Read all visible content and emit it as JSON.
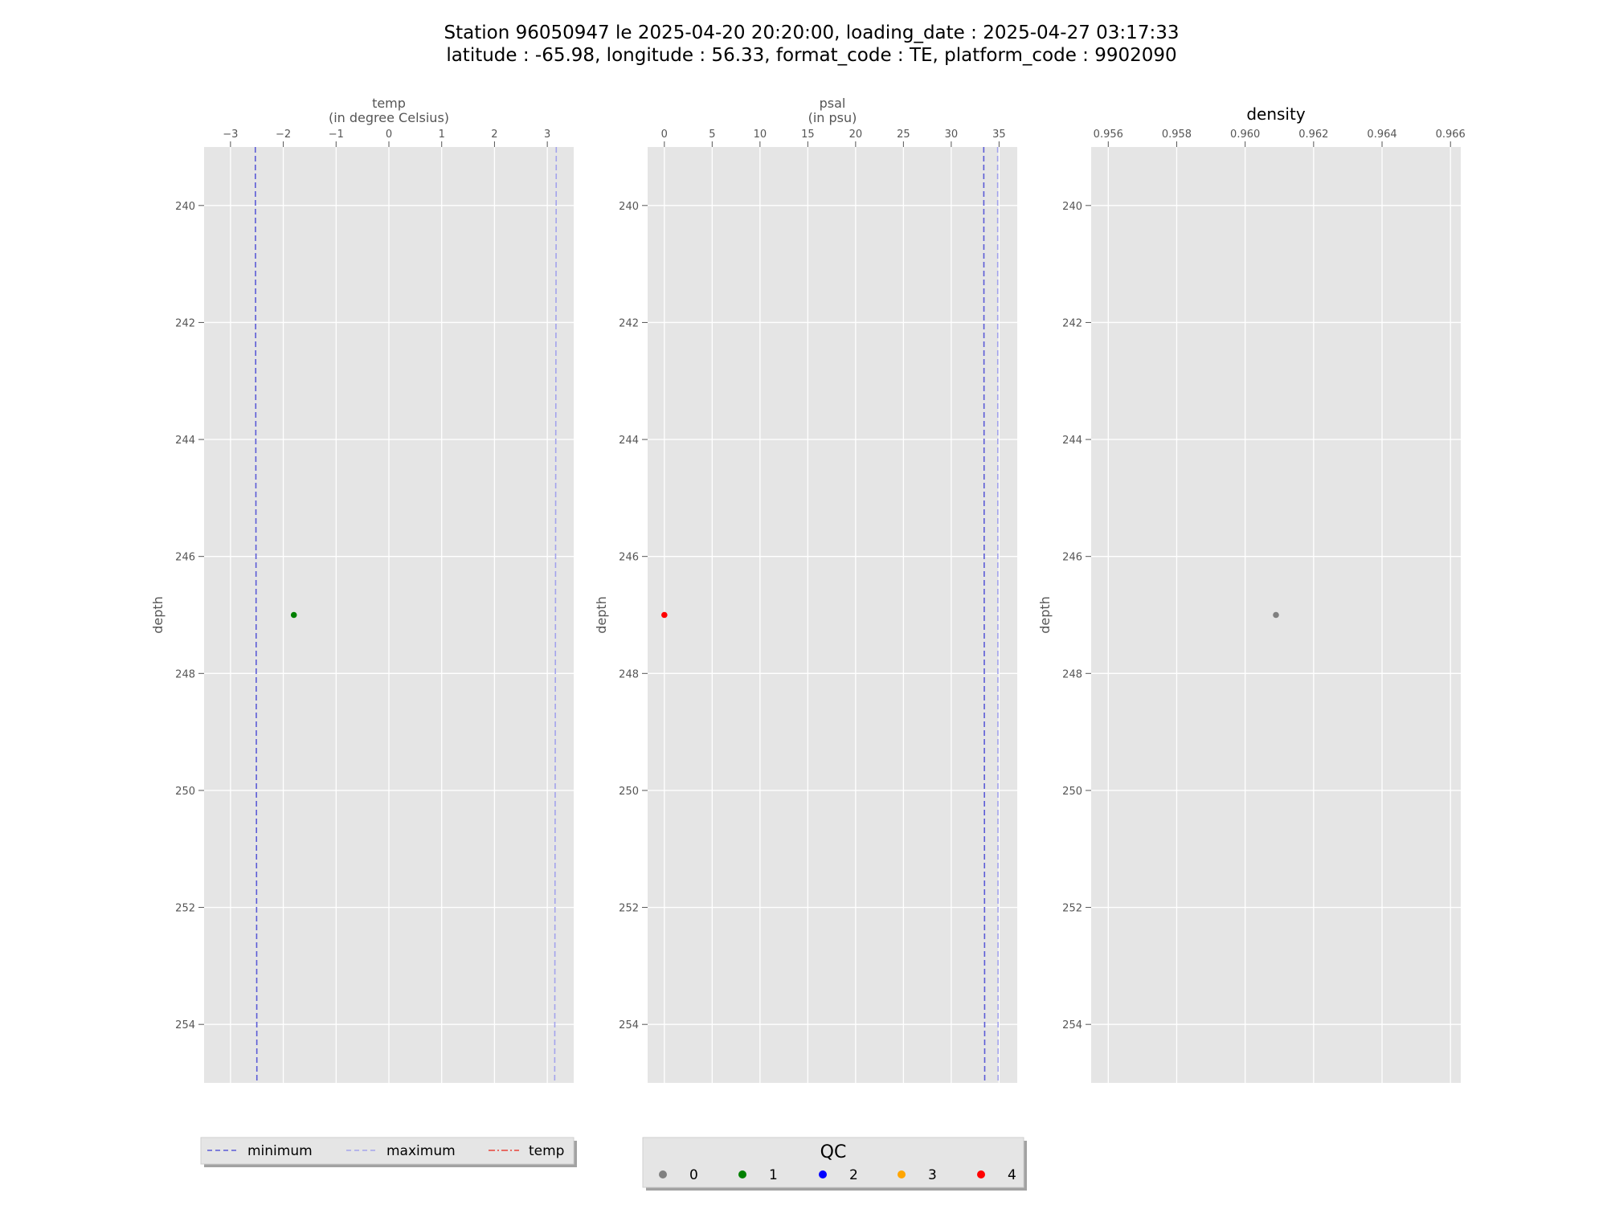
{
  "figure": {
    "title_line1": "Station 96050947 le 2025-04-20 20:20:00, loading_date : 2025-04-27 03:17:33",
    "title_line2": "latitude : -65.98, longitude : 56.33, format_code : TE, platform_code : 9902090"
  },
  "colors": {
    "panel_bg": "#e5e5e5",
    "grid": "#ffffff",
    "minimum": "#5b5bd6",
    "maximum": "#a3a3ec",
    "temp_line": "#e8433a",
    "qc0": "#808080",
    "qc1": "#008000",
    "qc2": "#0000ff",
    "qc3": "#ffa500",
    "qc4": "#ff0000"
  },
  "chart_data": [
    {
      "type": "scatter",
      "title_line1": "temp",
      "title_line2": "(in degree Celsius)",
      "ylabel": "depth",
      "xlim": [
        -3.5,
        3.5
      ],
      "ylim": [
        255,
        239
      ],
      "x_ticks": [
        -3,
        -2,
        -1,
        0,
        1,
        2,
        3
      ],
      "x_tick_labels": [
        "−3",
        "−2",
        "−1",
        "0",
        "1",
        "2",
        "3"
      ],
      "y_ticks": [
        240,
        242,
        244,
        246,
        248,
        250,
        252,
        254
      ],
      "y_tick_labels": [
        "240",
        "242",
        "244",
        "246",
        "248",
        "250",
        "252",
        "254"
      ],
      "grid": true,
      "points": [
        {
          "x": -1.8,
          "y": 247,
          "qc": "1"
        }
      ],
      "lines": [
        {
          "name": "minimum",
          "x": [
            -2.53,
            -2.5
          ],
          "y": [
            239,
            255
          ]
        },
        {
          "name": "maximum",
          "x": [
            3.17,
            3.14
          ],
          "y": [
            239,
            255
          ]
        }
      ]
    },
    {
      "type": "scatter",
      "title_line1": "psal",
      "title_line2": "(in psu)",
      "ylabel": "depth",
      "xlim": [
        -1.75,
        36.9
      ],
      "ylim": [
        255,
        239
      ],
      "x_ticks": [
        0,
        5,
        10,
        15,
        20,
        25,
        30,
        35
      ],
      "x_tick_labels": [
        "0",
        "5",
        "10",
        "15",
        "20",
        "25",
        "30",
        "35"
      ],
      "y_ticks": [
        240,
        242,
        244,
        246,
        248,
        250,
        252,
        254
      ],
      "y_tick_labels": [
        "240",
        "242",
        "244",
        "246",
        "248",
        "250",
        "252",
        "254"
      ],
      "grid": true,
      "points": [
        {
          "x": 0,
          "y": 247,
          "qc": "4"
        }
      ],
      "lines": [
        {
          "name": "minimum",
          "x": [
            33.4,
            33.5
          ],
          "y": [
            239,
            255
          ]
        },
        {
          "name": "maximum",
          "x": [
            34.85,
            34.9
          ],
          "y": [
            239,
            255
          ]
        }
      ]
    },
    {
      "type": "scatter",
      "title_line1": "density",
      "title_line2": "",
      "ylabel": "depth",
      "xlim": [
        0.9555,
        0.9663
      ],
      "ylim": [
        255,
        239
      ],
      "x_ticks": [
        0.956,
        0.958,
        0.96,
        0.962,
        0.964,
        0.966
      ],
      "x_tick_labels": [
        "0.956",
        "0.958",
        "0.960",
        "0.962",
        "0.964",
        "0.966"
      ],
      "y_ticks": [
        240,
        242,
        244,
        246,
        248,
        250,
        252,
        254
      ],
      "y_tick_labels": [
        "240",
        "242",
        "244",
        "246",
        "248",
        "250",
        "252",
        "254"
      ],
      "grid": true,
      "points": [
        {
          "x": 0.9609,
          "y": 247,
          "qc": "0"
        }
      ],
      "lines": []
    }
  ],
  "legend_lines": {
    "items": [
      {
        "label": "minimum",
        "color_key": "minimum",
        "style": "dashed"
      },
      {
        "label": "maximum",
        "color_key": "maximum",
        "style": "dashed"
      },
      {
        "label": "temp",
        "color_key": "temp_line",
        "style": "dashdot"
      }
    ]
  },
  "legend_qc": {
    "title": "QC",
    "items": [
      {
        "label": "0",
        "color_key": "qc0"
      },
      {
        "label": "1",
        "color_key": "qc1"
      },
      {
        "label": "2",
        "color_key": "qc2"
      },
      {
        "label": "3",
        "color_key": "qc3"
      },
      {
        "label": "4",
        "color_key": "qc4"
      }
    ]
  }
}
